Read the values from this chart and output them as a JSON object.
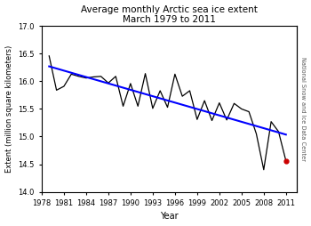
{
  "title_line1": "Average monthly Arctic sea ice extent",
  "title_line2": "March 1979 to 2011",
  "xlabel": "Year",
  "ylabel": "Extent (million square kilometers)",
  "right_label": "National Snow and Ice Data Center",
  "years": [
    1979,
    1980,
    1981,
    1982,
    1983,
    1984,
    1985,
    1986,
    1987,
    1988,
    1989,
    1990,
    1991,
    1992,
    1993,
    1994,
    1995,
    1996,
    1997,
    1998,
    1999,
    2000,
    2001,
    2002,
    2003,
    2004,
    2005,
    2006,
    2007,
    2008,
    2009,
    2010,
    2011
  ],
  "values": [
    16.46,
    15.84,
    15.91,
    16.13,
    16.09,
    16.06,
    16.08,
    16.09,
    15.97,
    16.09,
    15.55,
    15.96,
    15.55,
    16.14,
    15.51,
    15.83,
    15.53,
    16.13,
    15.73,
    15.83,
    15.31,
    15.65,
    15.29,
    15.61,
    15.3,
    15.6,
    15.5,
    15.45,
    15.05,
    14.4,
    15.27,
    15.09,
    14.56
  ],
  "highlight_year": 2011,
  "highlight_value": 14.56,
  "highlight_color": "#cc0000",
  "line_color": "#000000",
  "trend_color": "#0000ff",
  "ylim": [
    14.0,
    17.0
  ],
  "yticks": [
    14.0,
    14.5,
    15.0,
    15.5,
    16.0,
    16.5,
    17.0
  ],
  "xticks": [
    1978,
    1981,
    1984,
    1987,
    1990,
    1993,
    1996,
    1999,
    2002,
    2005,
    2008,
    2011
  ],
  "xlim": [
    1978,
    2012.5
  ],
  "background_color": "#ffffff",
  "plot_bg": "#ffffff"
}
